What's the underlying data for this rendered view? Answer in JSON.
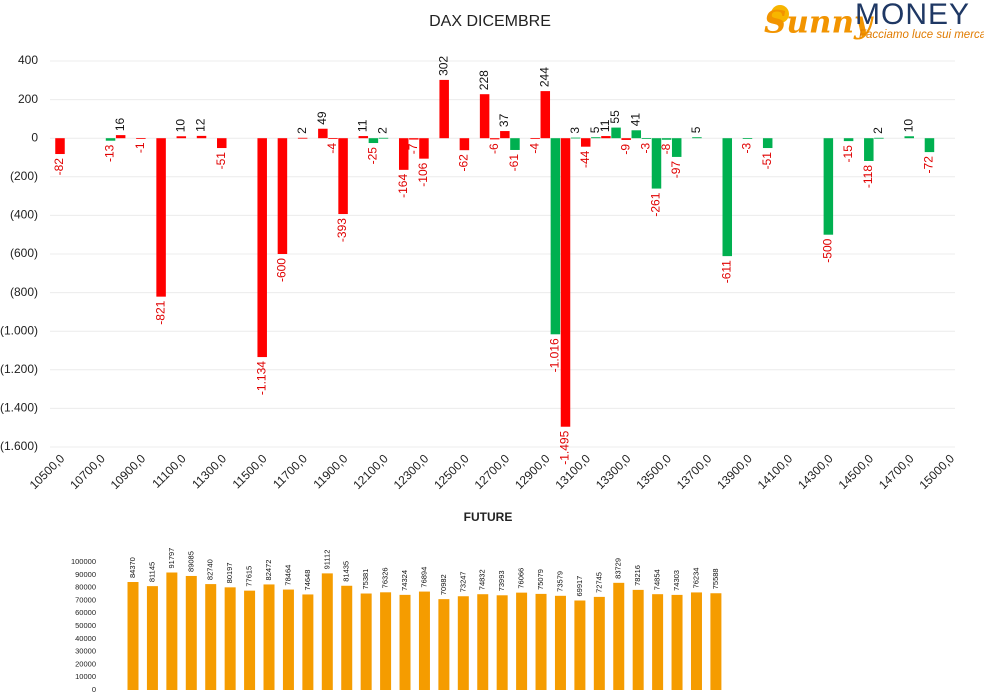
{
  "logo": {
    "brand": "Sunny",
    "name": "MONEY",
    "tagline": "Facciamo luce sui mercati"
  },
  "chart_data": [
    {
      "type": "bar",
      "title": "DAX DICEMBRE",
      "categories": [
        "10500,0",
        null,
        null,
        null,
        "10700,0",
        null,
        null,
        null,
        "10900,0",
        null,
        null,
        null,
        "11100,0",
        null,
        null,
        null,
        "11300,0",
        null,
        null,
        null,
        "11500,0",
        null,
        null,
        null,
        "11700,0",
        null,
        null,
        null,
        "11900,0",
        null,
        null,
        null,
        "12100,0",
        null,
        null,
        null,
        "12300,0",
        null,
        null,
        null,
        "12500,0",
        null,
        null,
        null,
        "12700,0",
        null,
        null,
        null,
        "12900,0",
        null,
        null,
        null,
        "13100,0",
        null,
        null,
        null,
        "13300,0",
        null,
        null,
        null,
        "13500,0",
        null,
        null,
        null,
        "13700,0",
        null,
        null,
        null,
        "13900,0",
        null,
        null,
        null,
        "14100,0",
        null,
        null,
        null,
        "14300,0",
        null,
        null,
        null,
        "14500,0",
        null,
        null,
        null,
        "14700,0",
        null,
        null,
        null,
        "15000,0"
      ],
      "series": [
        {
          "color": "#ff0000",
          "values": [
            -82,
            null,
            null,
            null,
            null,
            null,
            16,
            null,
            -1,
            null,
            -821,
            null,
            10,
            null,
            12,
            null,
            -51,
            null,
            null,
            null,
            -1134,
            null,
            -600,
            null,
            2,
            null,
            49,
            -4,
            -393,
            null,
            11,
            null,
            null,
            null,
            -164,
            -7,
            -106,
            null,
            302,
            null,
            -62,
            null,
            228,
            -6,
            37,
            null,
            null,
            -4,
            244,
            null,
            -1495,
            null,
            -44,
            null,
            11,
            null,
            -9,
            null,
            null,
            null,
            null,
            null,
            null,
            null,
            null,
            null,
            null,
            null,
            null,
            null,
            null,
            null,
            null,
            null,
            null,
            null,
            null,
            null,
            null,
            null,
            null,
            null,
            null,
            null,
            null,
            null,
            null,
            null,
            null
          ],
          "value_labels": [
            null,
            null,
            null,
            null,
            null,
            null,
            null,
            null,
            null,
            null,
            null,
            null,
            null,
            null,
            null,
            null,
            null,
            null,
            null,
            null,
            "-1.134",
            null,
            null,
            null,
            null,
            null,
            null,
            null,
            null,
            null,
            null,
            null,
            null,
            null,
            null,
            null,
            null,
            null,
            null,
            null,
            null,
            null,
            null,
            null,
            null,
            null,
            null,
            null,
            null,
            null,
            "-1.495",
            null,
            null,
            null,
            null,
            null,
            null,
            null,
            null,
            null,
            null,
            null,
            null,
            null,
            null,
            null,
            null,
            null,
            null,
            null,
            null,
            null,
            null,
            null,
            null,
            null,
            null,
            null,
            null,
            null,
            null,
            null,
            null,
            null,
            null,
            null,
            null,
            null,
            null
          ]
        },
        {
          "color": "#00b050",
          "values": [
            null,
            null,
            null,
            null,
            null,
            -13,
            null,
            null,
            null,
            null,
            null,
            null,
            null,
            null,
            null,
            null,
            null,
            null,
            null,
            null,
            null,
            null,
            null,
            null,
            null,
            null,
            null,
            null,
            null,
            null,
            null,
            -25,
            2,
            null,
            null,
            null,
            null,
            null,
            null,
            null,
            null,
            null,
            null,
            null,
            null,
            -61,
            null,
            null,
            null,
            -1016,
            null,
            3,
            null,
            5,
            null,
            55,
            null,
            41,
            -3,
            -261,
            -8,
            -97,
            null,
            5,
            null,
            null,
            -611,
            null,
            -3,
            null,
            -51,
            null,
            null,
            null,
            null,
            null,
            -500,
            null,
            -15,
            null,
            -118,
            2,
            null,
            null,
            10,
            null,
            -72,
            null,
            null
          ],
          "value_labels": [
            null,
            null,
            null,
            null,
            null,
            null,
            null,
            null,
            null,
            null,
            null,
            null,
            null,
            null,
            null,
            null,
            null,
            null,
            null,
            null,
            null,
            null,
            null,
            null,
            null,
            null,
            null,
            null,
            null,
            null,
            null,
            null,
            null,
            null,
            null,
            null,
            null,
            null,
            null,
            null,
            null,
            null,
            null,
            null,
            null,
            null,
            null,
            null,
            null,
            "-1.016",
            null,
            null,
            null,
            null,
            null,
            null,
            null,
            null,
            null,
            null,
            null,
            null,
            null,
            null,
            null,
            null,
            null,
            null,
            null,
            null,
            null,
            null,
            null,
            null,
            null,
            null,
            null,
            null,
            null,
            null,
            null,
            null,
            null,
            null,
            null,
            null,
            null,
            null,
            null
          ]
        }
      ],
      "ylim": [
        -1600,
        400
      ],
      "yticks": [
        400,
        200,
        0,
        {
          "value": -200,
          "label": "(200)"
        },
        {
          "value": -400,
          "label": "(400)"
        },
        {
          "value": -600,
          "label": "(600)"
        },
        {
          "value": -800,
          "label": "(800)"
        },
        {
          "value": -1000,
          "label": "(1.000)"
        },
        {
          "value": -1200,
          "label": "(1.200)"
        },
        {
          "value": -1400,
          "label": "(1.400)"
        },
        {
          "value": -1600,
          "label": "(1.600)"
        }
      ],
      "grid": true
    },
    {
      "type": "bar",
      "title": "FUTURE",
      "categories": [
        null,
        null,
        null,
        null,
        null,
        null,
        null,
        null,
        null,
        null,
        null,
        null,
        null,
        null,
        null,
        null,
        null,
        null,
        null,
        null,
        null,
        null,
        null,
        null,
        null,
        null,
        null,
        null,
        null,
        null,
        null
      ],
      "series": [
        {
          "color": "#f59c00",
          "values": [
            84370,
            81145,
            91797,
            89085,
            82740,
            80197,
            77615,
            82472,
            78464,
            74648,
            91112,
            81435,
            75381,
            76326,
            74324,
            76894,
            70982,
            73247,
            74832,
            73993,
            76066,
            75079,
            73579,
            69917,
            72745,
            83729,
            78216,
            74854,
            74303,
            76234,
            75588
          ]
        }
      ],
      "ylim": [
        0,
        100000
      ],
      "yticks": [
        0,
        10000,
        20000,
        30000,
        40000,
        50000,
        60000,
        70000,
        80000,
        90000,
        100000
      ],
      "grid": false
    }
  ]
}
